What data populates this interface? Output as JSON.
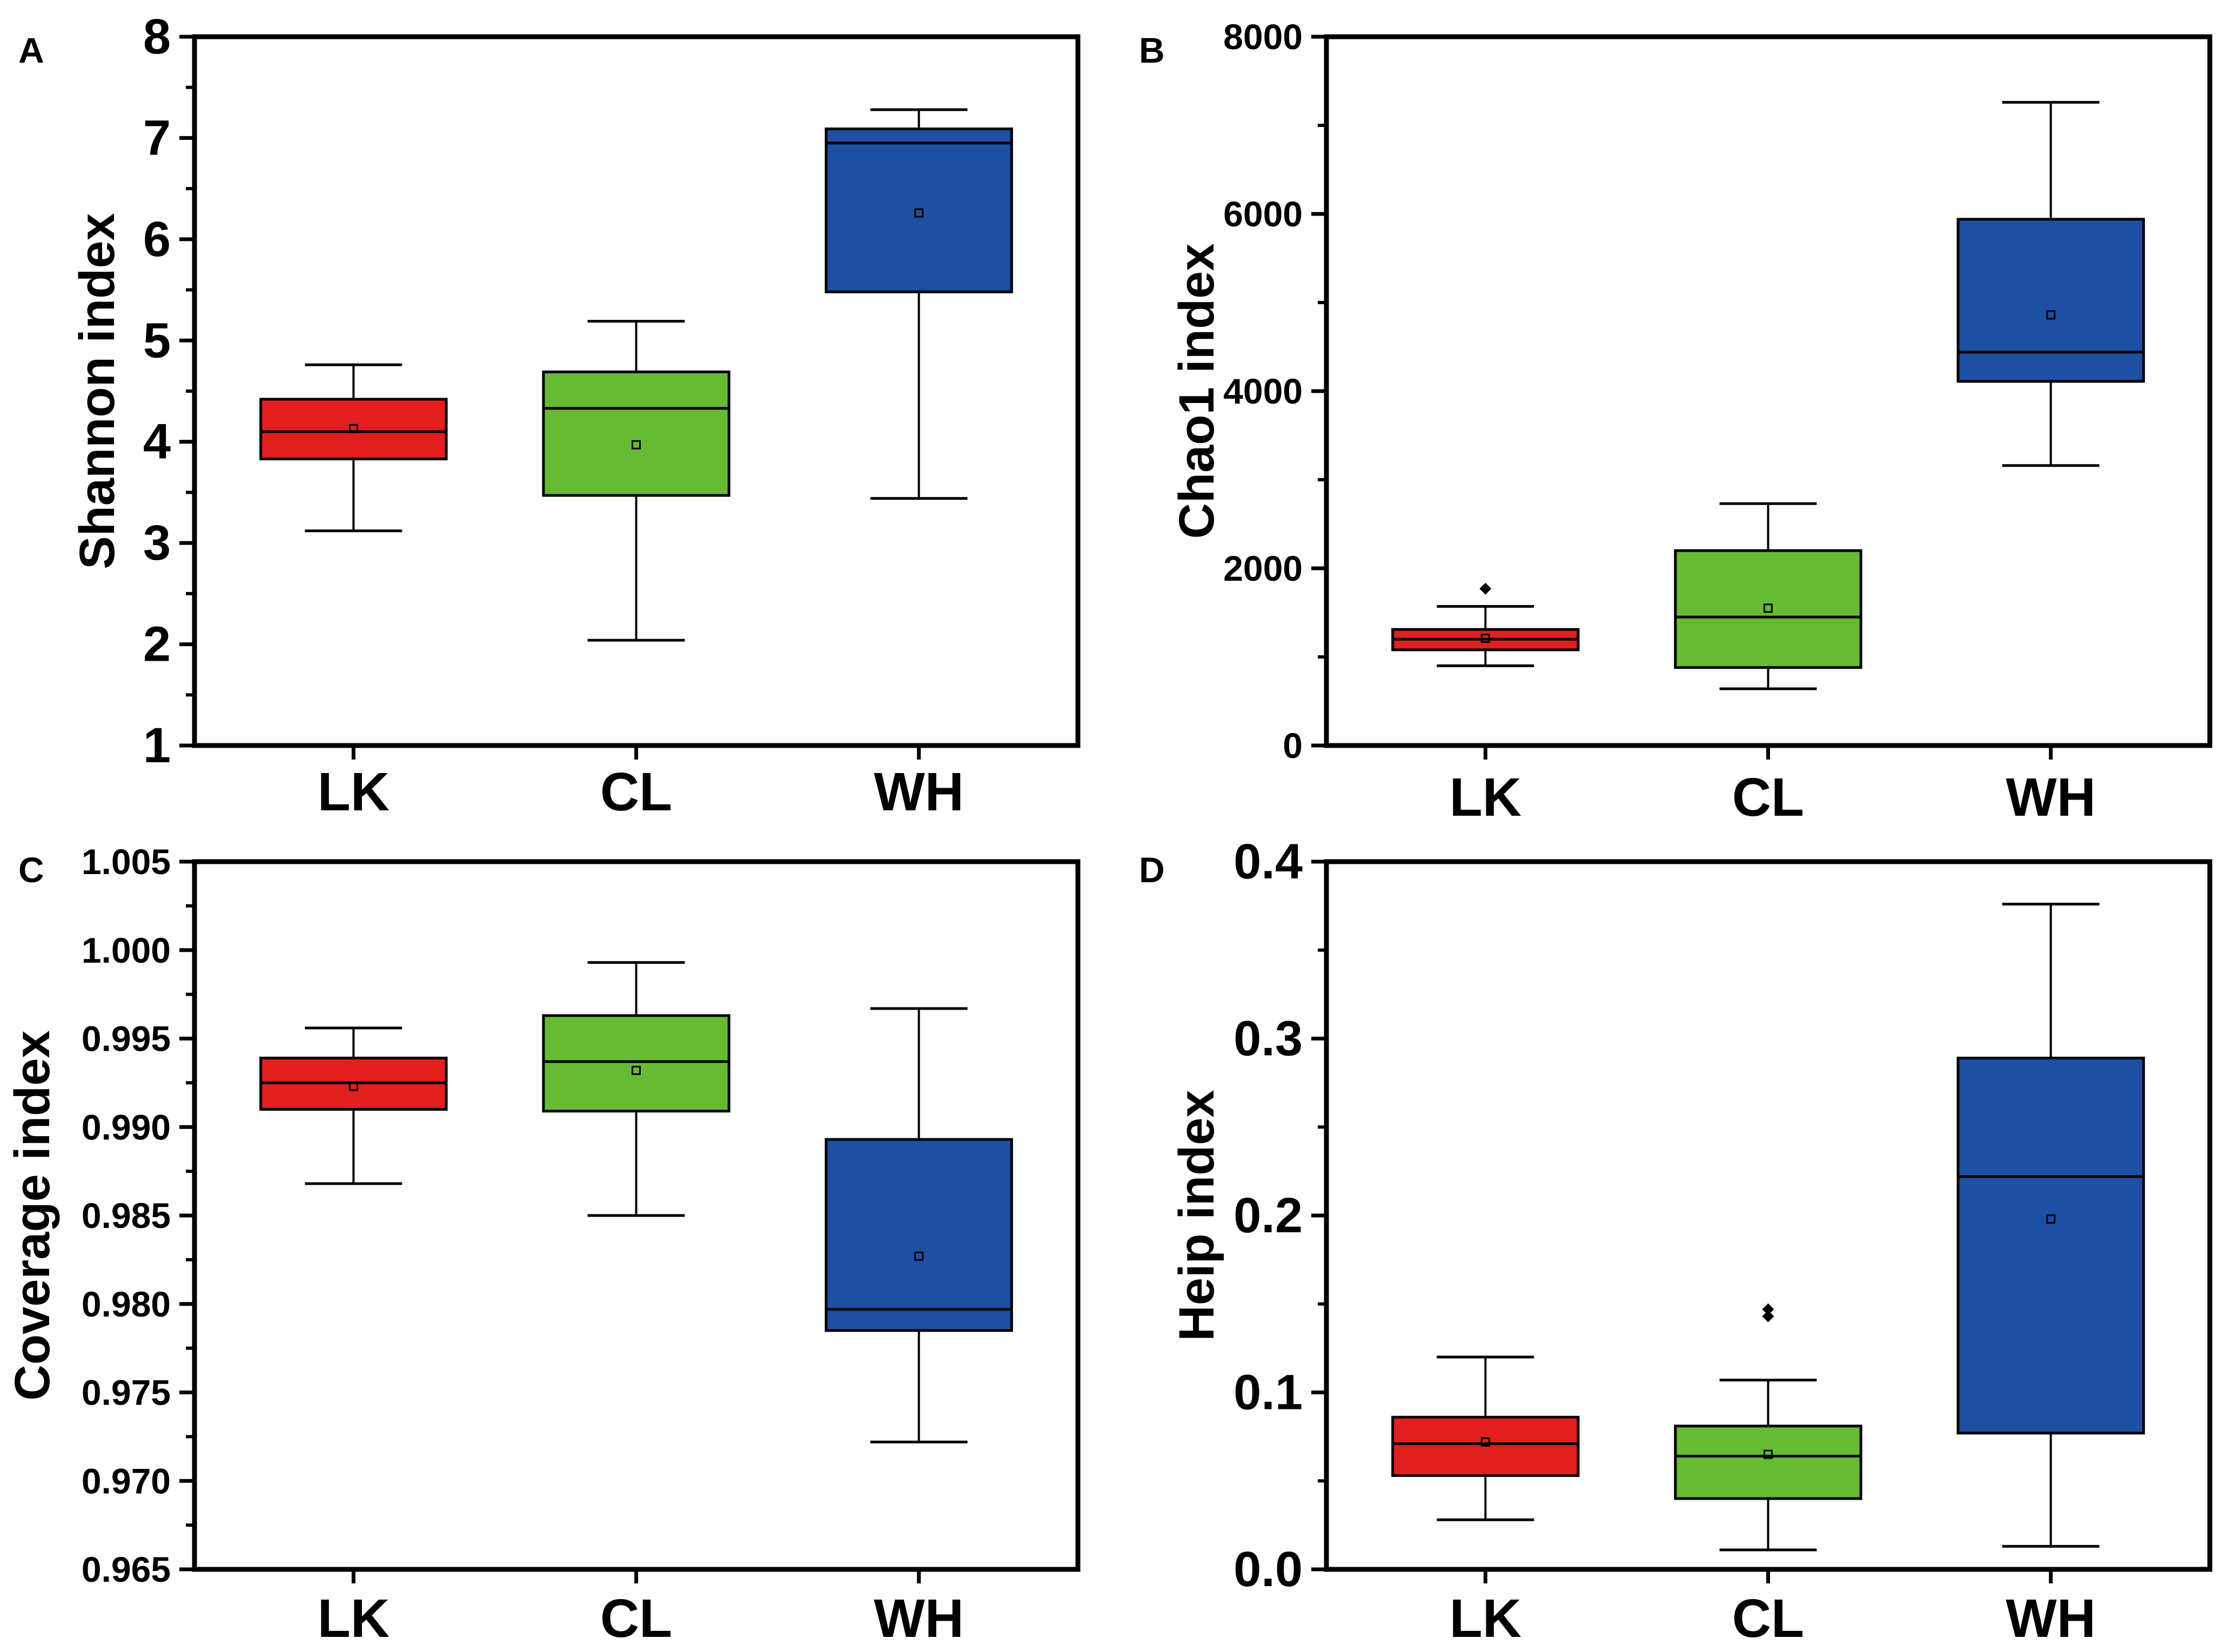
{
  "chart_data": [
    {
      "panel_label": "A",
      "type": "box",
      "ylabel": "Shannon index",
      "ylim": [
        1,
        8
      ],
      "yticks": [
        1,
        2,
        3,
        4,
        5,
        6,
        7,
        8
      ],
      "categories": [
        "LK",
        "CL",
        "WH"
      ],
      "boxes": [
        {
          "name": "LK",
          "color": "#e31e1e",
          "whisker_low": 3.12,
          "q1": 3.83,
          "median": 4.1,
          "q3": 4.42,
          "whisker_high": 4.76,
          "mean": 4.13,
          "outliers": []
        },
        {
          "name": "CL",
          "color": "#66bb33",
          "whisker_low": 2.04,
          "q1": 3.47,
          "median": 4.33,
          "q3": 4.69,
          "whisker_high": 5.19,
          "mean": 3.97,
          "outliers": []
        },
        {
          "name": "WH",
          "color": "#1d4fa3",
          "whisker_low": 3.44,
          "q1": 5.48,
          "median": 6.95,
          "q3": 7.09,
          "whisker_high": 7.28,
          "mean": 6.26,
          "outliers": []
        }
      ]
    },
    {
      "panel_label": "B",
      "type": "box",
      "ylabel": "Chao1 index",
      "ylim": [
        0,
        8000
      ],
      "yticks": [
        0,
        2000,
        4000,
        6000,
        8000
      ],
      "categories": [
        "LK",
        "CL",
        "WH"
      ],
      "boxes": [
        {
          "name": "LK",
          "color": "#e31e1e",
          "whisker_low": 900,
          "q1": 1080,
          "median": 1200,
          "q3": 1310,
          "whisker_high": 1570,
          "mean": 1210,
          "outliers": [
            1770
          ]
        },
        {
          "name": "CL",
          "color": "#66bb33",
          "whisker_low": 640,
          "q1": 880,
          "median": 1450,
          "q3": 2200,
          "whisker_high": 2730,
          "mean": 1550,
          "outliers": []
        },
        {
          "name": "WH",
          "color": "#1d4fa3",
          "whisker_low": 3160,
          "q1": 4110,
          "median": 4440,
          "q3": 5940,
          "whisker_high": 7260,
          "mean": 4860,
          "outliers": []
        }
      ]
    },
    {
      "panel_label": "C",
      "type": "box",
      "ylabel": "Coverage index",
      "ylim": [
        0.965,
        1.005
      ],
      "yticks": [
        0.965,
        0.97,
        0.975,
        0.98,
        0.985,
        0.99,
        0.995,
        1.0,
        1.005
      ],
      "ytick_labels": [
        "0.965",
        "0.970",
        "0.975",
        "0.980",
        "0.985",
        "0.990",
        "0.995",
        "1.000",
        "1.005"
      ],
      "categories": [
        "LK",
        "CL",
        "WH"
      ],
      "boxes": [
        {
          "name": "LK",
          "color": "#e31e1e",
          "whisker_low": 0.9868,
          "q1": 0.991,
          "median": 0.9925,
          "q3": 0.9939,
          "whisker_high": 0.9956,
          "mean": 0.9923,
          "outliers": []
        },
        {
          "name": "CL",
          "color": "#66bb33",
          "whisker_low": 0.985,
          "q1": 0.9909,
          "median": 0.9937,
          "q3": 0.9963,
          "whisker_high": 0.9993,
          "mean": 0.9932,
          "outliers": []
        },
        {
          "name": "WH",
          "color": "#1d4fa3",
          "whisker_low": 0.9722,
          "q1": 0.9785,
          "median": 0.9797,
          "q3": 0.9893,
          "whisker_high": 0.9967,
          "mean": 0.9827,
          "outliers": []
        }
      ]
    },
    {
      "panel_label": "D",
      "type": "box",
      "ylabel": "Heip index",
      "ylim": [
        0,
        0.4
      ],
      "yticks": [
        0,
        0.1,
        0.2,
        0.3,
        0.4
      ],
      "ytick_labels": [
        "0.0",
        "0.1",
        "0.2",
        "0.3",
        "0.4"
      ],
      "categories": [
        "LK",
        "CL",
        "WH"
      ],
      "boxes": [
        {
          "name": "LK",
          "color": "#e31e1e",
          "whisker_low": 0.028,
          "q1": 0.053,
          "median": 0.071,
          "q3": 0.086,
          "whisker_high": 0.12,
          "mean": 0.072,
          "outliers": []
        },
        {
          "name": "CL",
          "color": "#66bb33",
          "whisker_low": 0.011,
          "q1": 0.04,
          "median": 0.064,
          "q3": 0.081,
          "whisker_high": 0.107,
          "mean": 0.065,
          "outliers": [
            0.143,
            0.147
          ]
        },
        {
          "name": "WH",
          "color": "#1d4fa3",
          "whisker_low": 0.013,
          "q1": 0.077,
          "median": 0.222,
          "q3": 0.289,
          "whisker_high": 0.376,
          "mean": 0.198,
          "outliers": []
        }
      ]
    }
  ]
}
